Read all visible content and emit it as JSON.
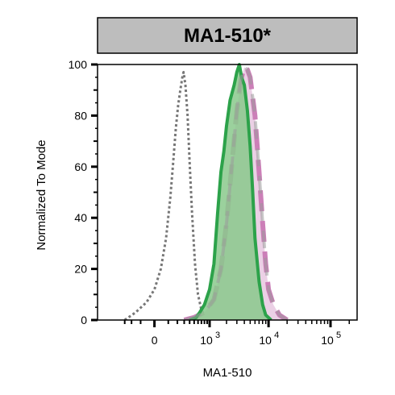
{
  "chart_data": {
    "type": "area",
    "title": "MA1-510*",
    "xlabel": "MA1-510",
    "ylabel": "Normalized To Mode",
    "x_scale": "biexponential",
    "xlim": [
      -400,
      200000
    ],
    "ylim": [
      0,
      100
    ],
    "x_ticks": [
      {
        "value": 0,
        "label": "0"
      },
      {
        "value": 1000,
        "label": "10",
        "exp": "3"
      },
      {
        "value": 10000,
        "label": "10",
        "exp": "4"
      },
      {
        "value": 100000,
        "label": "10",
        "exp": "5"
      }
    ],
    "y_ticks": [
      0,
      20,
      40,
      60,
      80,
      100
    ],
    "series": [
      {
        "style": "dotted-gray",
        "color": "#777777",
        "points": [
          [
            -300,
            0
          ],
          [
            -150,
            3
          ],
          [
            -50,
            7
          ],
          [
            0,
            12
          ],
          [
            40,
            20
          ],
          [
            80,
            32
          ],
          [
            120,
            48
          ],
          [
            150,
            62
          ],
          [
            180,
            75
          ],
          [
            210,
            84
          ],
          [
            240,
            90
          ],
          [
            270,
            95
          ],
          [
            290,
            97
          ],
          [
            320,
            92
          ],
          [
            360,
            80
          ],
          [
            400,
            62
          ],
          [
            450,
            42
          ],
          [
            520,
            22
          ],
          [
            600,
            10
          ],
          [
            700,
            4
          ],
          [
            850,
            1
          ],
          [
            1000,
            0
          ]
        ]
      },
      {
        "style": "pink-filled-dashed",
        "color": "#cc7fb8",
        "fill": "#ebd0e5",
        "points": [
          [
            300,
            0
          ],
          [
            500,
            1
          ],
          [
            800,
            3
          ],
          [
            1200,
            8
          ],
          [
            1600,
            20
          ],
          [
            2000,
            38
          ],
          [
            2500,
            62
          ],
          [
            3000,
            82
          ],
          [
            3500,
            94
          ],
          [
            4000,
            99
          ],
          [
            4500,
            98
          ],
          [
            5000,
            95
          ],
          [
            6000,
            80
          ],
          [
            7000,
            58
          ],
          [
            8000,
            38
          ],
          [
            9000,
            22
          ],
          [
            10000,
            12
          ],
          [
            12000,
            6
          ],
          [
            15000,
            2
          ],
          [
            20000,
            0
          ]
        ]
      },
      {
        "style": "green-filled-solid",
        "color": "#2ca24a",
        "fill": "#8ac98c",
        "points": [
          [
            400,
            0
          ],
          [
            550,
            1
          ],
          [
            650,
            3
          ],
          [
            800,
            6
          ],
          [
            1000,
            12
          ],
          [
            1200,
            22
          ],
          [
            1400,
            42
          ],
          [
            1600,
            58
          ],
          [
            1800,
            66
          ],
          [
            2000,
            76
          ],
          [
            2300,
            86
          ],
          [
            2700,
            92
          ],
          [
            3000,
            97
          ],
          [
            3300,
            100
          ],
          [
            3600,
            95
          ],
          [
            4000,
            92
          ],
          [
            4500,
            82
          ],
          [
            5000,
            68
          ],
          [
            5500,
            50
          ],
          [
            6000,
            32
          ],
          [
            7000,
            15
          ],
          [
            8000,
            6
          ],
          [
            9000,
            2
          ],
          [
            11000,
            0
          ]
        ]
      }
    ]
  }
}
